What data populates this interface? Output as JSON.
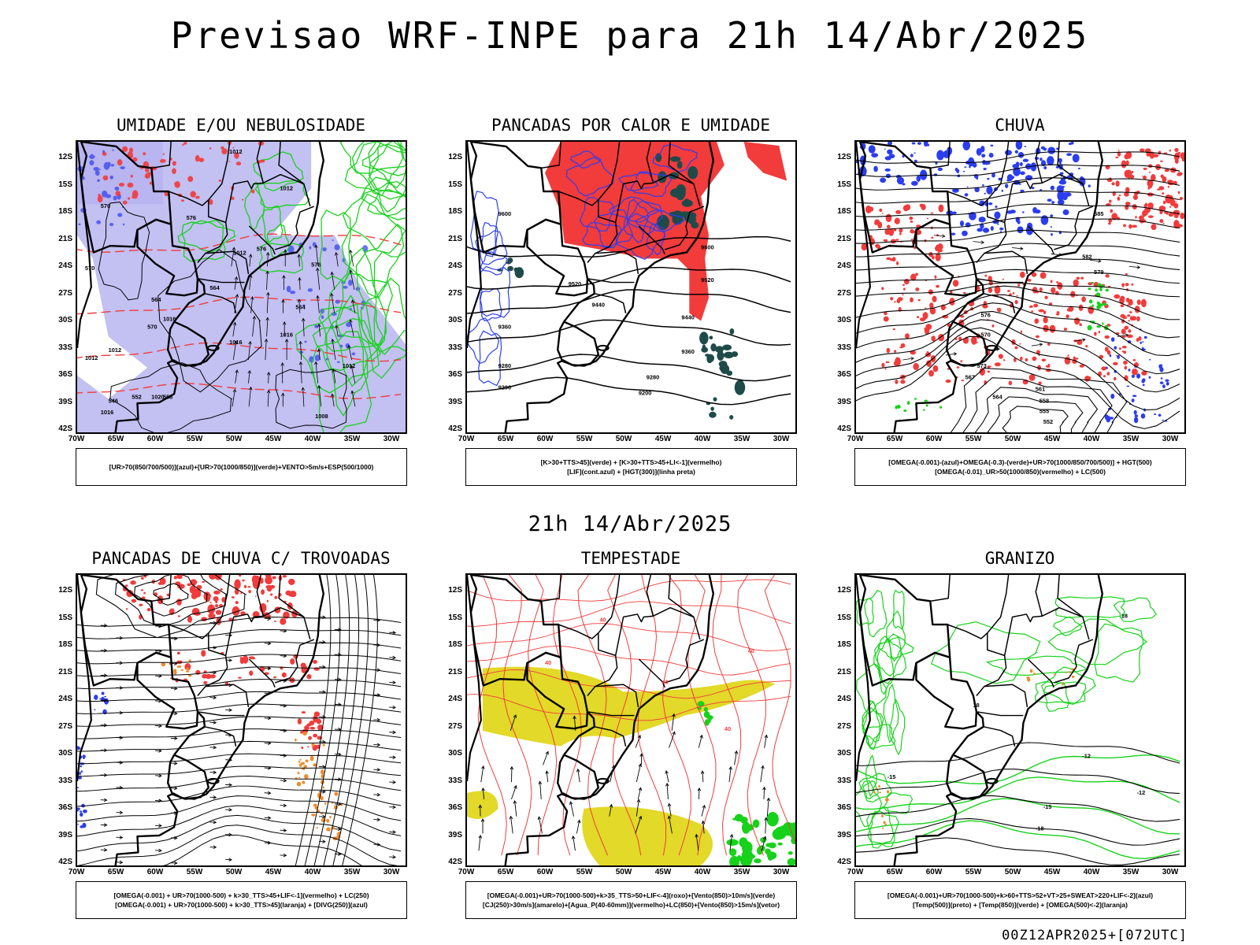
{
  "header": {
    "title": "Previsao WRF-INPE  para 21h 14/Abr/2025"
  },
  "mid_label": "21h 14/Abr/2025",
  "footer": {
    "run_id": "00Z12APR2025+[072UTC]"
  },
  "axes": {
    "lat_labels": [
      "12S",
      "15S",
      "18S",
      "21S",
      "24S",
      "27S",
      "30S",
      "33S",
      "36S",
      "39S",
      "42S"
    ],
    "lon_labels": [
      "70W",
      "65W",
      "60W",
      "55W",
      "50W",
      "45W",
      "40W",
      "35W",
      "30W"
    ]
  },
  "colors": {
    "blue": "#2b3df0",
    "lavender": "#b9b5f0",
    "green": "#16d21a",
    "red": "#f23b3b",
    "darkteal": "#1f4a4a",
    "yellow": "#e2d928",
    "orange": "#f08a28",
    "black": "#000000"
  },
  "panels": [
    {
      "id": "umidade",
      "title": "UMIDADE E/OU NEBULOSIDADE",
      "legend": [
        "[UR>70(850/700/500)](azul)+[UR>70(1000/850)](verde)+VENTO>5m/s+ESP(500/1000)"
      ],
      "labels": [
        "1012",
        "1012",
        "1012",
        "1016",
        "1016",
        "1012",
        "1012",
        "1016",
        "1012",
        "1016",
        "1020",
        "1008",
        "576",
        "576",
        "576",
        "576",
        "570",
        "570",
        "564",
        "564",
        "564",
        "558",
        "552",
        "546"
      ]
    },
    {
      "id": "pancadas-calor",
      "title": "PANCADAS POR CALOR E UMIDADE",
      "legend": [
        "[K>30+TTS>45](verde) + [K>30+TTS>45+LI<-1](vermelho)",
        "[LIF](cont.azul) + [HGT(300)](linha preta)"
      ],
      "labels": [
        "9600",
        "9520",
        "9440",
        "9360",
        "9280",
        "9200",
        "9600",
        "9520",
        "9440",
        "9360",
        "9280",
        "9200"
      ]
    },
    {
      "id": "chuva",
      "title": "CHUVA",
      "legend": [
        "[OMEGA(-0.001)-(azul)+OMEGA(-0.3)-(verde)+UR>70(1000/850/700/500)] + HGT(500)",
        "[OMEGA(-0.01)_UR>50(1000/850)(vermelho) + LC(500)"
      ],
      "labels": [
        "585",
        "582",
        "579",
        "576",
        "573",
        "570",
        "567",
        "564",
        "561",
        "558",
        "555",
        "552"
      ]
    },
    {
      "id": "pancadas-trovoadas",
      "title": "PANCADAS DE CHUVA C/ TROVOADAS",
      "legend": [
        "[OMEGA(-0.001) + UR>70(1000-500) + k>30_TTS>45+LIF<-1](vermelho) + LC(250)",
        "[OMEGA(-0.001) + UR>70(1000-500) + k>30_TTS>45](laranja) + [DIVG(250)](azul)"
      ],
      "labels": []
    },
    {
      "id": "tempestade",
      "title": "TEMPESTADE",
      "legend": [
        "[OMEGA(-0.001)+UR>70(1000-500)+k>35_TTS>50+LIF<-4](roxo)+[Vento(850)>10m/s](verde)",
        "[CJ(250)>30m/s](amarelo)+[Agua_P(40-60mm)](vermelho)+LC(850)+[Vento(850)>15m/s](vetor)"
      ],
      "labels": [
        "40",
        "40",
        "40",
        "40",
        "40"
      ]
    },
    {
      "id": "granizo",
      "title": "GRANIZO",
      "legend": [
        "[OMEGA(-0.001)+UR>70(1000-500)+k>60+TTS>52+VT>25+SWEAT>220+LIF<-2](azul)",
        "[Temp(500)](preto) + [Temp(850)](verde) + [OMEGA(500)<-2](laranja)"
      ],
      "labels": [
        "-18",
        "-15",
        "-15",
        "-12",
        "-12",
        "18",
        "18"
      ]
    }
  ]
}
